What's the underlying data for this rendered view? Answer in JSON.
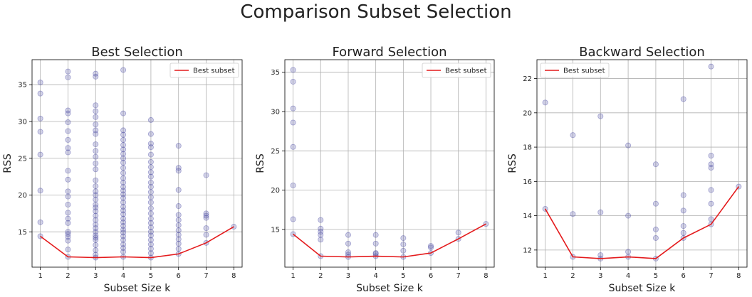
{
  "figure_title": "Comparison Subset Selection",
  "chart_data": [
    {
      "type": "scatter",
      "title": "Best Selection",
      "xlabel": "Subset Size k",
      "ylabel": "RSS",
      "xlim": [
        0.7,
        8.3
      ],
      "ylim": [
        10.2,
        38.4
      ],
      "xticks": [
        1,
        2,
        3,
        4,
        5,
        6,
        7,
        8
      ],
      "yticks": [
        15,
        20,
        25,
        30,
        35
      ],
      "grid": true,
      "legend_position": "top-right",
      "colors": {
        "scatter": "#4b4ba3",
        "line": "#e41a1c"
      },
      "scatter": [
        {
          "x": 1,
          "y": 14.4
        },
        {
          "x": 1,
          "y": 16.3
        },
        {
          "x": 1,
          "y": 20.6
        },
        {
          "x": 1,
          "y": 25.5
        },
        {
          "x": 1,
          "y": 28.6
        },
        {
          "x": 1,
          "y": 30.4
        },
        {
          "x": 1,
          "y": 33.8
        },
        {
          "x": 1,
          "y": 35.3
        },
        {
          "x": 2,
          "y": 11.6
        },
        {
          "x": 2,
          "y": 12.6
        },
        {
          "x": 2,
          "y": 13.8
        },
        {
          "x": 2,
          "y": 14.3
        },
        {
          "x": 2,
          "y": 14.7
        },
        {
          "x": 2,
          "y": 15.0
        },
        {
          "x": 2,
          "y": 16.2
        },
        {
          "x": 2,
          "y": 16.8
        },
        {
          "x": 2,
          "y": 17.6
        },
        {
          "x": 2,
          "y": 18.7
        },
        {
          "x": 2,
          "y": 19.8
        },
        {
          "x": 2,
          "y": 20.5
        },
        {
          "x": 2,
          "y": 22.1
        },
        {
          "x": 2,
          "y": 23.3
        },
        {
          "x": 2,
          "y": 25.8
        },
        {
          "x": 2,
          "y": 26.4
        },
        {
          "x": 2,
          "y": 27.5
        },
        {
          "x": 2,
          "y": 28.7
        },
        {
          "x": 2,
          "y": 29.9
        },
        {
          "x": 2,
          "y": 31.1
        },
        {
          "x": 2,
          "y": 31.5
        },
        {
          "x": 2,
          "y": 36.0
        },
        {
          "x": 2,
          "y": 36.8
        },
        {
          "x": 3,
          "y": 11.5
        },
        {
          "x": 3,
          "y": 11.9
        },
        {
          "x": 3,
          "y": 12.5
        },
        {
          "x": 3,
          "y": 13.2
        },
        {
          "x": 3,
          "y": 13.9
        },
        {
          "x": 3,
          "y": 14.2
        },
        {
          "x": 3,
          "y": 14.5
        },
        {
          "x": 3,
          "y": 15.0
        },
        {
          "x": 3,
          "y": 15.5
        },
        {
          "x": 3,
          "y": 16.0
        },
        {
          "x": 3,
          "y": 16.6
        },
        {
          "x": 3,
          "y": 17.2
        },
        {
          "x": 3,
          "y": 17.8
        },
        {
          "x": 3,
          "y": 18.3
        },
        {
          "x": 3,
          "y": 18.7
        },
        {
          "x": 3,
          "y": 19.4
        },
        {
          "x": 3,
          "y": 20.0
        },
        {
          "x": 3,
          "y": 20.5
        },
        {
          "x": 3,
          "y": 21.2
        },
        {
          "x": 3,
          "y": 22.0
        },
        {
          "x": 3,
          "y": 23.5
        },
        {
          "x": 3,
          "y": 24.3
        },
        {
          "x": 3,
          "y": 25.2
        },
        {
          "x": 3,
          "y": 26.0
        },
        {
          "x": 3,
          "y": 26.9
        },
        {
          "x": 3,
          "y": 28.3
        },
        {
          "x": 3,
          "y": 28.8
        },
        {
          "x": 3,
          "y": 29.6
        },
        {
          "x": 3,
          "y": 30.6
        },
        {
          "x": 3,
          "y": 31.4
        },
        {
          "x": 3,
          "y": 32.2
        },
        {
          "x": 3,
          "y": 36.1
        },
        {
          "x": 3,
          "y": 36.5
        },
        {
          "x": 4,
          "y": 11.6
        },
        {
          "x": 4,
          "y": 12.3
        },
        {
          "x": 4,
          "y": 12.8
        },
        {
          "x": 4,
          "y": 13.3
        },
        {
          "x": 4,
          "y": 13.9
        },
        {
          "x": 4,
          "y": 14.4
        },
        {
          "x": 4,
          "y": 14.9
        },
        {
          "x": 4,
          "y": 15.3
        },
        {
          "x": 4,
          "y": 15.8
        },
        {
          "x": 4,
          "y": 16.3
        },
        {
          "x": 4,
          "y": 16.8
        },
        {
          "x": 4,
          "y": 17.4
        },
        {
          "x": 4,
          "y": 17.9
        },
        {
          "x": 4,
          "y": 18.4
        },
        {
          "x": 4,
          "y": 19.0
        },
        {
          "x": 4,
          "y": 19.6
        },
        {
          "x": 4,
          "y": 20.1
        },
        {
          "x": 4,
          "y": 20.6
        },
        {
          "x": 4,
          "y": 21.1
        },
        {
          "x": 4,
          "y": 21.7
        },
        {
          "x": 4,
          "y": 22.3
        },
        {
          "x": 4,
          "y": 23.0
        },
        {
          "x": 4,
          "y": 23.7
        },
        {
          "x": 4,
          "y": 24.4
        },
        {
          "x": 4,
          "y": 25.0
        },
        {
          "x": 4,
          "y": 25.6
        },
        {
          "x": 4,
          "y": 26.2
        },
        {
          "x": 4,
          "y": 26.8
        },
        {
          "x": 4,
          "y": 27.5
        },
        {
          "x": 4,
          "y": 28.2
        },
        {
          "x": 4,
          "y": 28.8
        },
        {
          "x": 4,
          "y": 31.1
        },
        {
          "x": 4,
          "y": 37.0
        },
        {
          "x": 5,
          "y": 11.5
        },
        {
          "x": 5,
          "y": 12.1
        },
        {
          "x": 5,
          "y": 12.7
        },
        {
          "x": 5,
          "y": 13.3
        },
        {
          "x": 5,
          "y": 13.9
        },
        {
          "x": 5,
          "y": 14.5
        },
        {
          "x": 5,
          "y": 15.0
        },
        {
          "x": 5,
          "y": 15.6
        },
        {
          "x": 5,
          "y": 16.2
        },
        {
          "x": 5,
          "y": 16.8
        },
        {
          "x": 5,
          "y": 17.5
        },
        {
          "x": 5,
          "y": 18.2
        },
        {
          "x": 5,
          "y": 19.0
        },
        {
          "x": 5,
          "y": 19.7
        },
        {
          "x": 5,
          "y": 20.4
        },
        {
          "x": 5,
          "y": 21.1
        },
        {
          "x": 5,
          "y": 21.7
        },
        {
          "x": 5,
          "y": 22.5
        },
        {
          "x": 5,
          "y": 23.1
        },
        {
          "x": 5,
          "y": 23.8
        },
        {
          "x": 5,
          "y": 24.5
        },
        {
          "x": 5,
          "y": 25.5
        },
        {
          "x": 5,
          "y": 26.5
        },
        {
          "x": 5,
          "y": 27.0
        },
        {
          "x": 5,
          "y": 28.3
        },
        {
          "x": 5,
          "y": 30.2
        },
        {
          "x": 6,
          "y": 12.0
        },
        {
          "x": 6,
          "y": 12.7
        },
        {
          "x": 6,
          "y": 13.4
        },
        {
          "x": 6,
          "y": 14.0
        },
        {
          "x": 6,
          "y": 14.6
        },
        {
          "x": 6,
          "y": 15.2
        },
        {
          "x": 6,
          "y": 15.9
        },
        {
          "x": 6,
          "y": 16.6
        },
        {
          "x": 6,
          "y": 17.3
        },
        {
          "x": 6,
          "y": 18.5
        },
        {
          "x": 6,
          "y": 20.7
        },
        {
          "x": 6,
          "y": 23.3
        },
        {
          "x": 6,
          "y": 23.7
        },
        {
          "x": 6,
          "y": 26.7
        },
        {
          "x": 7,
          "y": 13.5
        },
        {
          "x": 7,
          "y": 14.6
        },
        {
          "x": 7,
          "y": 15.5
        },
        {
          "x": 7,
          "y": 16.9
        },
        {
          "x": 7,
          "y": 17.2
        },
        {
          "x": 7,
          "y": 17.5
        },
        {
          "x": 7,
          "y": 22.7
        },
        {
          "x": 8,
          "y": 15.7
        }
      ],
      "series": [
        {
          "name": "Best subset",
          "x": [
            1,
            2,
            3,
            4,
            5,
            6,
            7,
            8
          ],
          "values": [
            14.4,
            11.6,
            11.5,
            11.6,
            11.5,
            12.0,
            13.5,
            15.7
          ]
        }
      ]
    },
    {
      "type": "scatter",
      "title": "Forward Selection",
      "xlabel": "Subset Size k",
      "ylabel": "RSS",
      "xlim": [
        0.7,
        8.3
      ],
      "ylim": [
        10.2,
        36.6
      ],
      "xticks": [
        1,
        2,
        3,
        4,
        5,
        6,
        7,
        8
      ],
      "yticks": [
        15,
        20,
        25,
        30,
        35
      ],
      "grid": true,
      "legend_position": "top-right",
      "colors": {
        "scatter": "#4b4ba3",
        "line": "#e41a1c"
      },
      "scatter": [
        {
          "x": 1,
          "y": 14.4
        },
        {
          "x": 1,
          "y": 16.3
        },
        {
          "x": 1,
          "y": 20.6
        },
        {
          "x": 1,
          "y": 25.5
        },
        {
          "x": 1,
          "y": 28.6
        },
        {
          "x": 1,
          "y": 30.4
        },
        {
          "x": 1,
          "y": 33.8
        },
        {
          "x": 1,
          "y": 35.3
        },
        {
          "x": 2,
          "y": 11.6
        },
        {
          "x": 2,
          "y": 13.7
        },
        {
          "x": 2,
          "y": 14.3
        },
        {
          "x": 2,
          "y": 14.7
        },
        {
          "x": 2,
          "y": 15.1
        },
        {
          "x": 2,
          "y": 16.2
        },
        {
          "x": 3,
          "y": 11.5
        },
        {
          "x": 3,
          "y": 11.8
        },
        {
          "x": 3,
          "y": 12.1
        },
        {
          "x": 3,
          "y": 13.2
        },
        {
          "x": 3,
          "y": 14.3
        },
        {
          "x": 4,
          "y": 11.6
        },
        {
          "x": 4,
          "y": 11.9
        },
        {
          "x": 4,
          "y": 12.0
        },
        {
          "x": 4,
          "y": 13.2
        },
        {
          "x": 4,
          "y": 14.3
        },
        {
          "x": 5,
          "y": 11.5
        },
        {
          "x": 5,
          "y": 12.3
        },
        {
          "x": 5,
          "y": 13.1
        },
        {
          "x": 5,
          "y": 13.9
        },
        {
          "x": 6,
          "y": 12.0
        },
        {
          "x": 6,
          "y": 12.7
        },
        {
          "x": 6,
          "y": 12.9
        },
        {
          "x": 7,
          "y": 13.8
        },
        {
          "x": 7,
          "y": 14.6
        },
        {
          "x": 8,
          "y": 15.7
        }
      ],
      "series": [
        {
          "name": "Best subset",
          "x": [
            1,
            2,
            3,
            4,
            5,
            6,
            7,
            8
          ],
          "values": [
            14.4,
            11.6,
            11.5,
            11.6,
            11.5,
            12.0,
            13.8,
            15.7
          ]
        }
      ]
    },
    {
      "type": "scatter",
      "title": "Backward Selection",
      "xlabel": "Subset Size k",
      "ylabel": "RSS",
      "xlim": [
        0.7,
        8.3
      ],
      "ylim": [
        11.0,
        23.1
      ],
      "xticks": [
        1,
        2,
        3,
        4,
        5,
        6,
        7,
        8
      ],
      "yticks": [
        12,
        14,
        16,
        18,
        20,
        22
      ],
      "grid": true,
      "legend_position": "top-left",
      "colors": {
        "scatter": "#4b4ba3",
        "line": "#e41a1c"
      },
      "scatter": [
        {
          "x": 1,
          "y": 14.4
        },
        {
          "x": 1,
          "y": 20.6
        },
        {
          "x": 2,
          "y": 11.6
        },
        {
          "x": 2,
          "y": 14.1
        },
        {
          "x": 2,
          "y": 18.7
        },
        {
          "x": 3,
          "y": 11.5
        },
        {
          "x": 3,
          "y": 11.7
        },
        {
          "x": 3,
          "y": 14.2
        },
        {
          "x": 3,
          "y": 19.8
        },
        {
          "x": 4,
          "y": 11.6
        },
        {
          "x": 4,
          "y": 11.9
        },
        {
          "x": 4,
          "y": 14.0
        },
        {
          "x": 4,
          "y": 18.1
        },
        {
          "x": 5,
          "y": 11.5
        },
        {
          "x": 5,
          "y": 12.7
        },
        {
          "x": 5,
          "y": 13.2
        },
        {
          "x": 5,
          "y": 14.7
        },
        {
          "x": 5,
          "y": 17.0
        },
        {
          "x": 6,
          "y": 12.7
        },
        {
          "x": 6,
          "y": 13.0
        },
        {
          "x": 6,
          "y": 13.4
        },
        {
          "x": 6,
          "y": 14.3
        },
        {
          "x": 6,
          "y": 15.2
        },
        {
          "x": 6,
          "y": 20.8
        },
        {
          "x": 7,
          "y": 13.5
        },
        {
          "x": 7,
          "y": 13.8
        },
        {
          "x": 7,
          "y": 14.7
        },
        {
          "x": 7,
          "y": 15.5
        },
        {
          "x": 7,
          "y": 16.8
        },
        {
          "x": 7,
          "y": 17.0
        },
        {
          "x": 7,
          "y": 17.5
        },
        {
          "x": 7,
          "y": 22.7
        },
        {
          "x": 8,
          "y": 15.7
        }
      ],
      "series": [
        {
          "name": "Best subset",
          "x": [
            1,
            2,
            3,
            4,
            5,
            6,
            7,
            8
          ],
          "values": [
            14.4,
            11.6,
            11.5,
            11.6,
            11.5,
            12.7,
            13.5,
            15.7
          ]
        }
      ]
    }
  ]
}
